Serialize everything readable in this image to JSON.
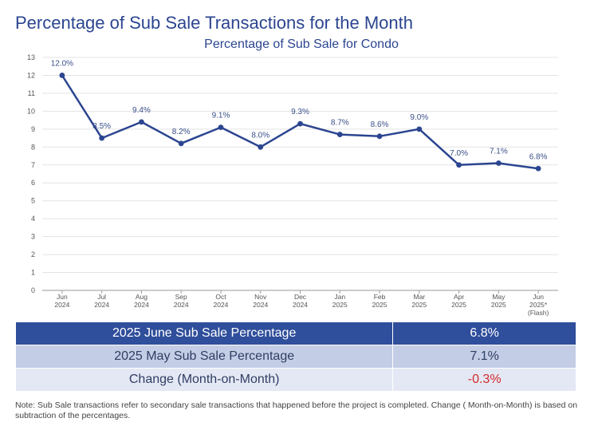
{
  "page": {
    "title": "Percentage of Sub Sale Transactions for the Month",
    "note": "Note: Sub Sale transactions refer to secondary sale transactions that happened before the project is completed. Change ( Month-on-Month) is based on subtraction of the percentages."
  },
  "colors": {
    "primary": "#2b4590",
    "header_row": "#2f4e9b",
    "mid_row": "#c4cde6",
    "light_row": "#e4e8f4",
    "negative": "#d42a2a"
  },
  "chart_data": {
    "type": "line",
    "title": "Percentage of Sub Sale for Condo",
    "xlabel": "",
    "ylabel": "",
    "ylim": [
      0,
      13
    ],
    "yticks": [
      0,
      1,
      2,
      3,
      4,
      5,
      6,
      7,
      8,
      9,
      10,
      11,
      12,
      13
    ],
    "grid": true,
    "categories": [
      [
        "Jun",
        "2024"
      ],
      [
        "Jul",
        "2024"
      ],
      [
        "Aug",
        "2024"
      ],
      [
        "Sep",
        "2024"
      ],
      [
        "Oct",
        "2024"
      ],
      [
        "Nov",
        "2024"
      ],
      [
        "Dec",
        "2024"
      ],
      [
        "Jan",
        "2025"
      ],
      [
        "Feb",
        "2025"
      ],
      [
        "Mar",
        "2025"
      ],
      [
        "Apr",
        "2025"
      ],
      [
        "May",
        "2025"
      ],
      [
        "Jun",
        "2025*",
        "(Flash)"
      ]
    ],
    "series": [
      {
        "name": "Percentage of Sub Sale",
        "values": [
          12.0,
          8.5,
          9.4,
          8.2,
          9.1,
          8.0,
          9.3,
          8.7,
          8.6,
          9.0,
          7.0,
          7.1,
          6.8
        ],
        "labels": [
          "12.0%",
          "8.5%",
          "9.4%",
          "8.2%",
          "9.1%",
          "8.0%",
          "9.3%",
          "8.7%",
          "8.6%",
          "9.0%",
          "7.0%",
          "7.1%",
          "6.8%"
        ]
      }
    ]
  },
  "summary_table": [
    {
      "label": "2025 June Sub Sale Percentage",
      "value": "6.8%"
    },
    {
      "label": "2025 May Sub Sale Percentage",
      "value": "7.1%"
    },
    {
      "label": "Change (Month-on-Month)",
      "value": "-0.3%"
    }
  ]
}
